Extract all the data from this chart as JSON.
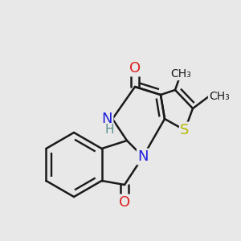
{
  "background_color": "#e8e8e8",
  "bond_color": "#1a1a1a",
  "bond_width": 1.8,
  "figsize": [
    3.0,
    3.0
  ],
  "dpi": 100,
  "atoms": {
    "S": {
      "color": "#b8b800",
      "fontsize": 13
    },
    "N": {
      "color": "#2020dd",
      "fontsize": 13
    },
    "O": {
      "color": "#dd2020",
      "fontsize": 13
    },
    "H": {
      "color": "#5a9090",
      "fontsize": 11
    },
    "Me": {
      "color": "#1a1a1a",
      "fontsize": 10
    }
  }
}
